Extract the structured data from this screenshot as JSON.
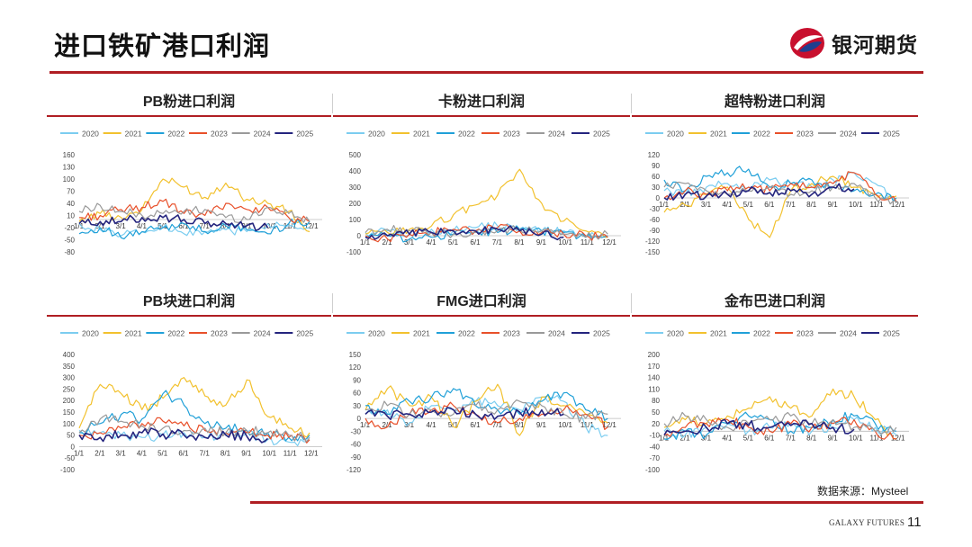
{
  "header": {
    "title": "进口铁矿港口利润",
    "logo_text": "银河期货"
  },
  "footer": {
    "source": "数据来源：Mysteel",
    "brand": "GALAXY FUTURES",
    "page_number": "11"
  },
  "colors": {
    "accent_red": "#b01e23",
    "logo_red": "#c8102e",
    "logo_blue": "#1f3f8f"
  },
  "legend_years": [
    "2020",
    "2021",
    "2022",
    "2023",
    "2024",
    "2025"
  ],
  "series_colors": [
    "#7ccdf0",
    "#f2c12e",
    "#20a0d8",
    "#e8502a",
    "#9a9a9a",
    "#24247e"
  ],
  "x_ticks": [
    "1/1",
    "2/1",
    "3/1",
    "4/1",
    "5/1",
    "6/1",
    "7/1",
    "8/1",
    "9/1",
    "10/1",
    "11/1",
    "12/1"
  ],
  "chart_data": [
    {
      "id": "pb-fines",
      "type": "line",
      "title": "PB粉进口利润",
      "yticks": [
        160,
        130,
        100,
        70,
        40,
        10,
        -20,
        -50,
        -80
      ],
      "ylim": [
        -80,
        160
      ],
      "x": [
        "1/1",
        "2/1",
        "3/1",
        "4/1",
        "5/1",
        "6/1",
        "7/1",
        "8/1",
        "9/1",
        "10/1",
        "11/1",
        "12/1"
      ],
      "series": [
        {
          "name": "2020",
          "values": [
            -10,
            -25,
            -40,
            -30,
            -20,
            -35,
            -30,
            -25,
            -30,
            -10,
            -15,
            -20
          ]
        },
        {
          "name": "2021",
          "values": [
            -5,
            15,
            5,
            25,
            100,
            80,
            55,
            90,
            50,
            40,
            20,
            -30
          ]
        },
        {
          "name": "2022",
          "values": [
            -35,
            -20,
            -45,
            -30,
            -20,
            -10,
            -30,
            -15,
            -25,
            -35,
            -10,
            -5
          ]
        },
        {
          "name": "2023",
          "values": [
            5,
            10,
            25,
            30,
            45,
            15,
            10,
            40,
            25,
            30,
            5,
            -5
          ]
        },
        {
          "name": "2024",
          "values": [
            20,
            35,
            20,
            10,
            15,
            20,
            25,
            5,
            0,
            30,
            15,
            -5
          ]
        },
        {
          "name": "2025",
          "values": [
            -10,
            -5,
            -5,
            5,
            5,
            0,
            -10,
            -10,
            -15,
            -20,
            null,
            null
          ]
        }
      ]
    },
    {
      "id": "carajas-fines",
      "type": "line",
      "title": "卡粉进口利润",
      "yticks": [
        500,
        400,
        300,
        200,
        100,
        0,
        -100
      ],
      "ylim": [
        -100,
        500
      ],
      "x": [
        "1/1",
        "2/1",
        "3/1",
        "4/1",
        "5/1",
        "6/1",
        "7/1",
        "8/1",
        "9/1",
        "10/1",
        "11/1",
        "12/1"
      ],
      "series": [
        {
          "name": "2020",
          "values": [
            20,
            30,
            10,
            40,
            30,
            50,
            60,
            40,
            30,
            30,
            0,
            -10
          ]
        },
        {
          "name": "2021",
          "values": [
            10,
            20,
            40,
            60,
            130,
            190,
            250,
            410,
            200,
            90,
            30,
            -10
          ]
        },
        {
          "name": "2022",
          "values": [
            -10,
            0,
            -20,
            -10,
            10,
            30,
            20,
            40,
            30,
            20,
            -10,
            0
          ]
        },
        {
          "name": "2023",
          "values": [
            0,
            -20,
            10,
            20,
            40,
            30,
            50,
            30,
            20,
            10,
            0,
            -10
          ]
        },
        {
          "name": "2024",
          "values": [
            20,
            40,
            30,
            20,
            10,
            20,
            30,
            40,
            30,
            10,
            -10,
            10
          ]
        },
        {
          "name": "2025",
          "values": [
            -10,
            0,
            10,
            20,
            30,
            30,
            40,
            30,
            10,
            -10,
            null,
            null
          ]
        }
      ]
    },
    {
      "id": "super-special-fines",
      "type": "line",
      "title": "超特粉进口利润",
      "yticks": [
        120,
        90,
        60,
        30,
        0,
        -30,
        -60,
        -90,
        -120,
        -150
      ],
      "ylim": [
        -150,
        120
      ],
      "x": [
        "1/1",
        "2/1",
        "3/1",
        "4/1",
        "5/1",
        "6/1",
        "7/1",
        "8/1",
        "9/1",
        "10/1",
        "11/1",
        "12/1"
      ],
      "series": [
        {
          "name": "2020",
          "values": [
            20,
            10,
            30,
            40,
            30,
            50,
            40,
            30,
            50,
            70,
            40,
            -10
          ]
        },
        {
          "name": "2021",
          "values": [
            -40,
            -20,
            10,
            30,
            -60,
            -110,
            20,
            40,
            60,
            30,
            10,
            5
          ]
        },
        {
          "name": "2022",
          "values": [
            50,
            20,
            60,
            70,
            80,
            30,
            40,
            50,
            30,
            20,
            10,
            0
          ]
        },
        {
          "name": "2023",
          "values": [
            0,
            20,
            10,
            20,
            30,
            20,
            40,
            30,
            40,
            70,
            10,
            -10
          ]
        },
        {
          "name": "2024",
          "values": [
            30,
            40,
            20,
            10,
            20,
            30,
            10,
            20,
            30,
            40,
            0,
            -10
          ]
        },
        {
          "name": "2025",
          "values": [
            0,
            10,
            5,
            10,
            20,
            15,
            20,
            10,
            30,
            25,
            null,
            null
          ]
        }
      ]
    },
    {
      "id": "pb-lump",
      "type": "line",
      "title": "PB块进口利润",
      "yticks": [
        400,
        350,
        300,
        250,
        200,
        150,
        100,
        50,
        0,
        -50,
        -100
      ],
      "ylim": [
        -100,
        400
      ],
      "x": [
        "1/1",
        "2/1",
        "3/1",
        "4/1",
        "5/1",
        "6/1",
        "7/1",
        "8/1",
        "9/1",
        "10/1",
        "11/1",
        "12/1"
      ],
      "series": [
        {
          "name": "2020",
          "values": [
            70,
            60,
            50,
            40,
            50,
            60,
            40,
            50,
            60,
            30,
            20,
            30
          ]
        },
        {
          "name": "2021",
          "values": [
            80,
            270,
            230,
            160,
            210,
            300,
            220,
            180,
            290,
            130,
            80,
            60
          ]
        },
        {
          "name": "2022",
          "values": [
            60,
            100,
            140,
            120,
            230,
            180,
            100,
            80,
            70,
            60,
            40,
            50
          ]
        },
        {
          "name": "2023",
          "values": [
            50,
            60,
            80,
            100,
            110,
            90,
            70,
            60,
            60,
            50,
            40,
            30
          ]
        },
        {
          "name": "2024",
          "values": [
            60,
            120,
            110,
            90,
            80,
            70,
            80,
            60,
            70,
            60,
            50,
            40
          ]
        },
        {
          "name": "2025",
          "values": [
            50,
            40,
            50,
            60,
            55,
            50,
            40,
            50,
            45,
            35,
            null,
            null
          ]
        }
      ]
    },
    {
      "id": "fmg",
      "type": "line",
      "title": "FMG进口利润",
      "yticks": [
        150,
        120,
        90,
        60,
        30,
        0,
        -30,
        -60,
        -90,
        -120
      ],
      "ylim": [
        -120,
        150
      ],
      "x": [
        "1/1",
        "2/1",
        "3/1",
        "4/1",
        "5/1",
        "6/1",
        "7/1",
        "8/1",
        "9/1",
        "10/1",
        "11/1",
        "12/1"
      ],
      "series": [
        {
          "name": "2020",
          "values": [
            10,
            20,
            -10,
            30,
            20,
            40,
            30,
            20,
            50,
            40,
            -20,
            -40
          ]
        },
        {
          "name": "2021",
          "values": [
            20,
            70,
            30,
            50,
            -20,
            40,
            80,
            -40,
            50,
            30,
            10,
            -10
          ]
        },
        {
          "name": "2022",
          "values": [
            30,
            10,
            40,
            50,
            70,
            30,
            20,
            10,
            40,
            60,
            20,
            0
          ]
        },
        {
          "name": "2023",
          "values": [
            0,
            -20,
            10,
            20,
            30,
            10,
            -10,
            0,
            10,
            20,
            10,
            -20
          ]
        },
        {
          "name": "2024",
          "values": [
            20,
            30,
            10,
            20,
            10,
            30,
            20,
            40,
            30,
            10,
            0,
            10
          ]
        },
        {
          "name": "2025",
          "values": [
            10,
            5,
            10,
            15,
            20,
            10,
            5,
            15,
            20,
            10,
            null,
            null
          ]
        }
      ]
    },
    {
      "id": "jimblebar",
      "type": "line",
      "title": "金布巴进口利润",
      "yticks": [
        200,
        170,
        140,
        110,
        80,
        50,
        20,
        -10,
        -40,
        -70,
        -100
      ],
      "ylim": [
        -100,
        200
      ],
      "x": [
        "1/1",
        "2/1",
        "3/1",
        "4/1",
        "5/1",
        "6/1",
        "7/1",
        "8/1",
        "9/1",
        "10/1",
        "11/1",
        "12/1"
      ],
      "series": [
        {
          "name": "2020",
          "values": [
            0,
            -10,
            10,
            20,
            0,
            10,
            20,
            0,
            10,
            30,
            10,
            -10
          ]
        },
        {
          "name": "2021",
          "values": [
            10,
            30,
            20,
            40,
            60,
            90,
            60,
            40,
            110,
            90,
            30,
            -20
          ]
        },
        {
          "name": "2022",
          "values": [
            -20,
            0,
            -10,
            20,
            40,
            30,
            0,
            10,
            30,
            40,
            20,
            0
          ]
        },
        {
          "name": "2023",
          "values": [
            -10,
            10,
            20,
            30,
            10,
            0,
            20,
            10,
            20,
            30,
            0,
            -20
          ]
        },
        {
          "name": "2024",
          "values": [
            20,
            40,
            30,
            10,
            20,
            30,
            40,
            20,
            30,
            10,
            0,
            10
          ]
        },
        {
          "name": "2025",
          "values": [
            -10,
            0,
            10,
            20,
            15,
            10,
            15,
            20,
            10,
            5,
            null,
            null
          ]
        }
      ]
    }
  ]
}
